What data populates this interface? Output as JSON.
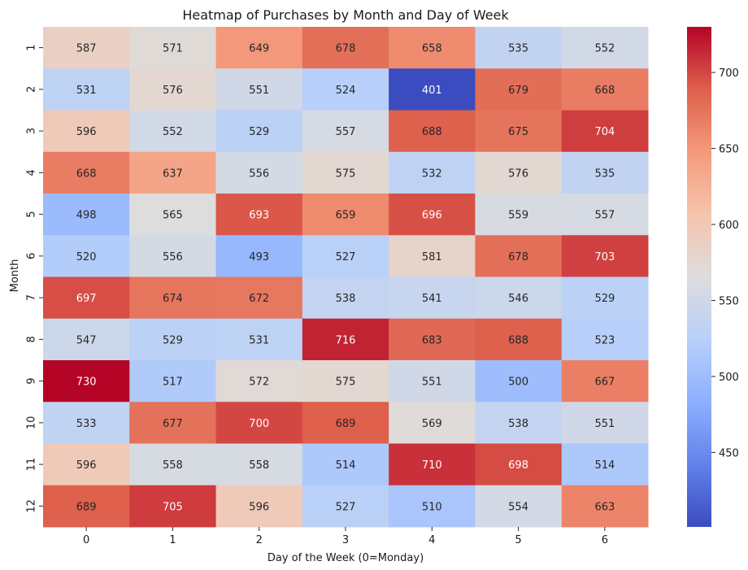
{
  "chart_data": {
    "type": "heatmap",
    "title": "Heatmap of Purchases by Month and Day of Week",
    "xlabel": "Day of the Week (0=Monday)",
    "ylabel": "Month",
    "x_categories": [
      "0",
      "1",
      "2",
      "3",
      "4",
      "5",
      "6"
    ],
    "y_categories": [
      "1",
      "2",
      "3",
      "4",
      "5",
      "6",
      "7",
      "8",
      "9",
      "10",
      "11",
      "12"
    ],
    "values": [
      [
        587,
        571,
        649,
        678,
        658,
        535,
        552
      ],
      [
        531,
        576,
        551,
        524,
        401,
        679,
        668
      ],
      [
        596,
        552,
        529,
        557,
        688,
        675,
        704
      ],
      [
        668,
        637,
        556,
        575,
        532,
        576,
        535
      ],
      [
        498,
        565,
        693,
        659,
        696,
        559,
        557
      ],
      [
        520,
        556,
        493,
        527,
        581,
        678,
        703
      ],
      [
        697,
        674,
        672,
        538,
        541,
        546,
        529
      ],
      [
        547,
        529,
        531,
        716,
        683,
        688,
        523
      ],
      [
        730,
        517,
        572,
        575,
        551,
        500,
        667
      ],
      [
        533,
        677,
        700,
        689,
        569,
        538,
        551
      ],
      [
        596,
        558,
        558,
        514,
        710,
        698,
        514
      ],
      [
        689,
        705,
        596,
        527,
        510,
        554,
        663
      ]
    ],
    "colormap": "coolwarm",
    "vmin": 401,
    "vmax": 730,
    "colorbar_ticks": [
      450,
      500,
      550,
      600,
      650,
      700
    ],
    "annotations": true
  }
}
